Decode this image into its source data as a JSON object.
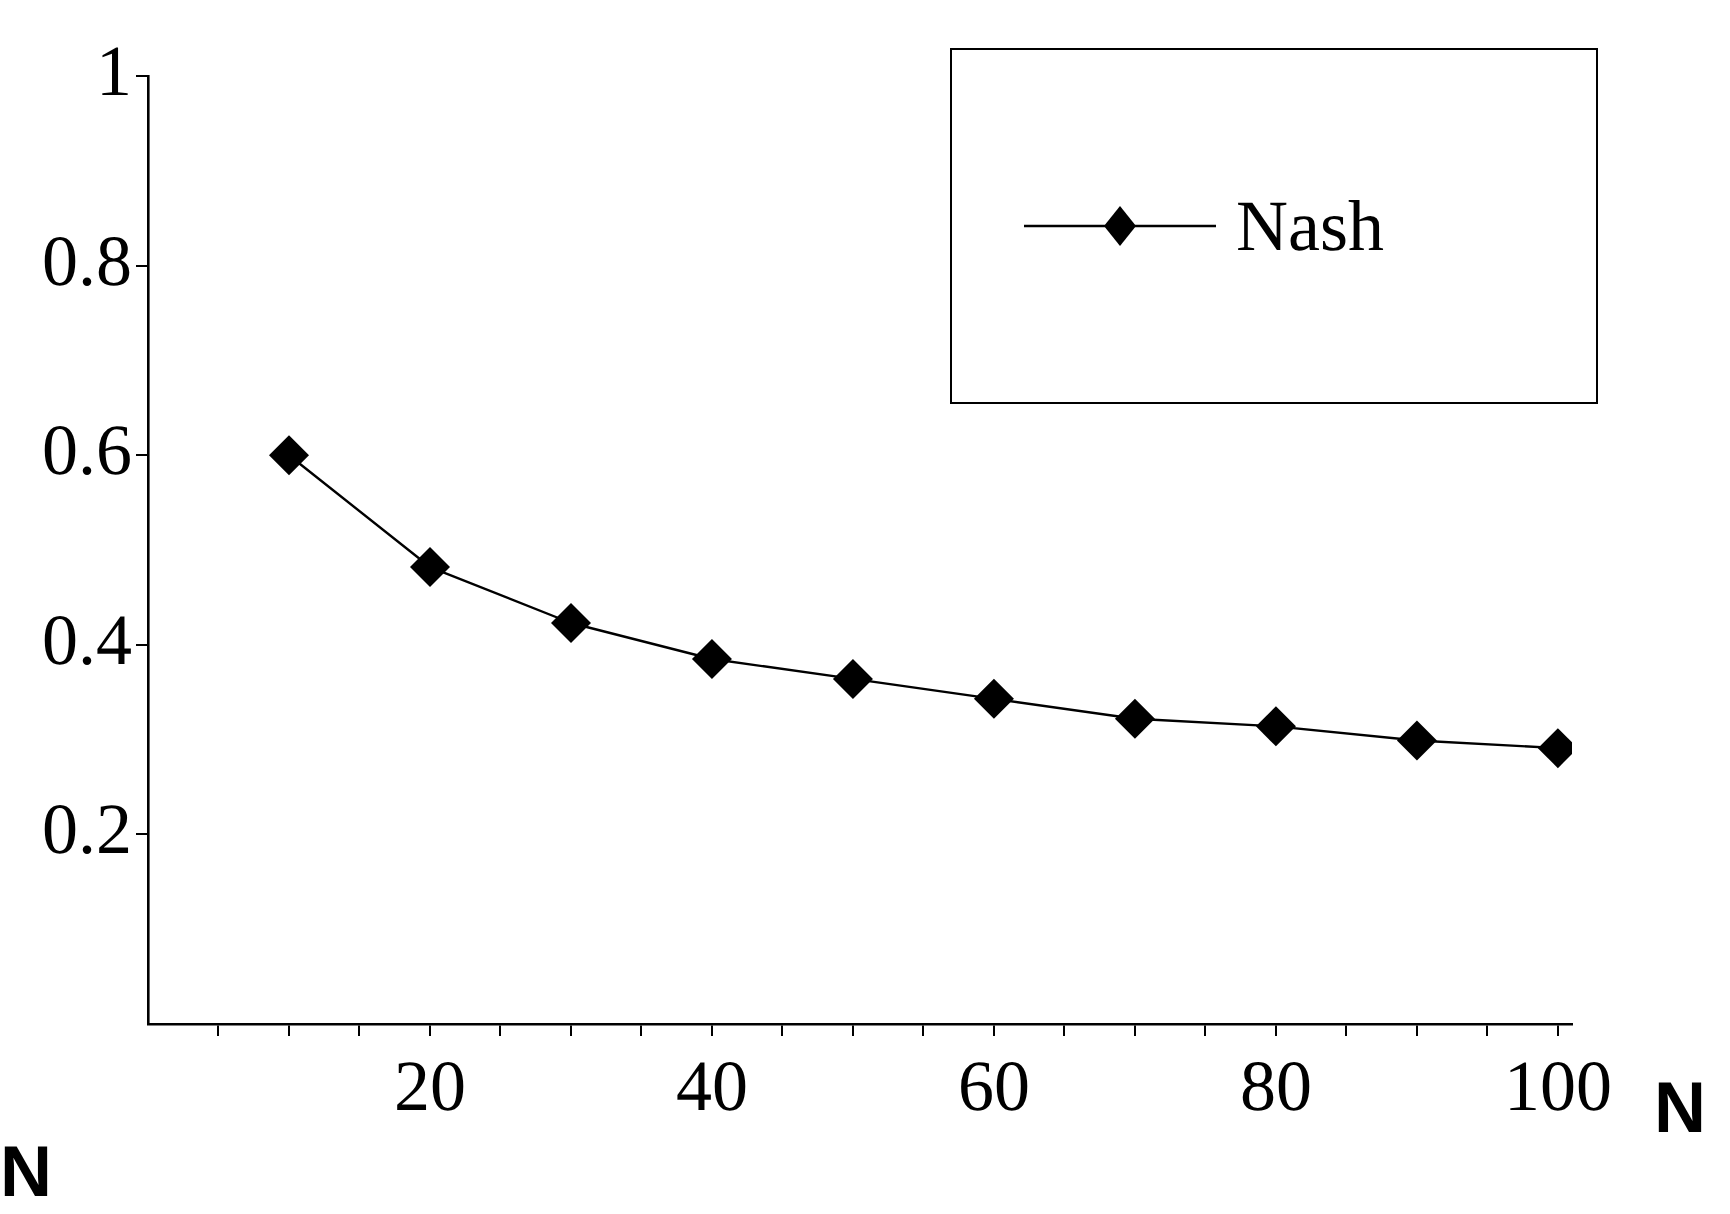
{
  "chart_data": {
    "type": "line",
    "x": [
      10,
      20,
      30,
      40,
      50,
      60,
      70,
      80,
      90,
      100
    ],
    "series": [
      {
        "name": "Nash",
        "color": "#000000",
        "values": [
          0.6,
          0.482,
          0.423,
          0.385,
          0.364,
          0.343,
          0.322,
          0.314,
          0.299,
          0.291
        ]
      }
    ],
    "xlabel": "N",
    "annotations": [
      "N"
    ],
    "xlim": [
      0,
      101
    ],
    "xticks": [
      {
        "value": 5,
        "label": null
      },
      {
        "value": 10,
        "label": null
      },
      {
        "value": 15,
        "label": null
      },
      20,
      {
        "value": 25,
        "label": null
      },
      {
        "value": 30,
        "label": null
      },
      {
        "value": 35,
        "label": null
      },
      40,
      {
        "value": 45,
        "label": null
      },
      {
        "value": 50,
        "label": null
      },
      {
        "value": 55,
        "label": null
      },
      60,
      {
        "value": 65,
        "label": null
      },
      {
        "value": 70,
        "label": null
      },
      {
        "value": 75,
        "label": null
      },
      80,
      {
        "value": 85,
        "label": null
      },
      {
        "value": 90,
        "label": null
      },
      {
        "value": 95,
        "label": null
      },
      100
    ],
    "ylim": [
      0,
      1
    ],
    "yticks": [
      0.2,
      0.4,
      0.6,
      0.8,
      1
    ],
    "marker": "diamond",
    "line_style": "solid",
    "grid": false,
    "legend": "top right"
  }
}
